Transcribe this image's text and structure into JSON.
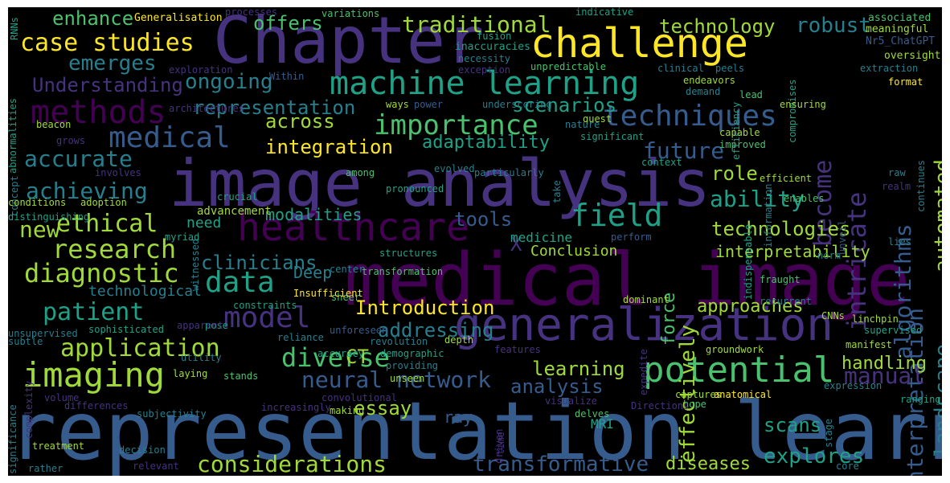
{
  "palette": {
    "yellow": "#fde725",
    "green_light": "#a0da39",
    "green": "#4ac16d",
    "teal": "#1fa187",
    "teal_dark": "#277f8e",
    "blue": "#365c8d",
    "indigo": "#46327e",
    "purple": "#440154",
    "background": "#000000"
  },
  "words": [
    "medical image",
    "representation learning",
    "image analysis",
    "Chapter",
    "generalization",
    "challenge",
    "machine learning",
    "healthcare",
    "potential",
    "imaging",
    "methods",
    "medical",
    "model",
    "field",
    "techniques",
    "importance",
    "data",
    "diagnostic",
    "research",
    "application",
    "considerations",
    "diverse",
    "neural network",
    "case studies",
    "traditional",
    "algorithms",
    "intricate",
    "become",
    "interpretation",
    "landscape",
    "automated",
    "ethical",
    "patient",
    "accurate",
    "achieving",
    "Introduction",
    "ability",
    "future",
    "manual",
    "integration",
    "emerges",
    "ongoing",
    "Understanding",
    "representation",
    "scenarios",
    "across",
    "adaptability",
    "technologies",
    "transformative",
    "explores",
    "diseases",
    "handling",
    "learning",
    "analysis",
    "essay",
    "scans",
    "approaches",
    "addressing",
    "tools",
    "clinicians",
    "robust",
    "technology",
    "enhance",
    "offers",
    "role",
    "effectively",
    "force",
    "interpretability",
    "new",
    "Deep",
    "CT",
    "X",
    "ray",
    "MRI",
    "modalities",
    "Conclusion",
    "medicine",
    "technological",
    "advancement",
    "need",
    "Generalisation",
    "processes",
    "variations",
    "indicative",
    "associated",
    "meaningful",
    "Nr5_ChatGPT",
    "fusion",
    "inaccuracies",
    "necessity",
    "exception",
    "unpredictable",
    "clinical",
    "peels",
    "oversight",
    "extraction",
    "exploration",
    "Within",
    "endeavors",
    "compromises",
    "format",
    "demand",
    "lead",
    "ensuring",
    "ways",
    "power",
    "underscoring",
    "abnormalities",
    "beacon",
    "grows",
    "architectures",
    "concept",
    "involves",
    "conditions",
    "adoption",
    "evolved",
    "pronounced",
    "particularly",
    "quest",
    "significant",
    "capable",
    "improved",
    "nature",
    "efficiency",
    "indispensable",
    "information",
    "context",
    "efficient",
    "among",
    "take",
    "raw",
    "realm",
    "enables",
    "unveil",
    "continues",
    "distinguishing",
    "crucial",
    "witnessed",
    "myriad",
    "transformation",
    "norm",
    "perform",
    "lies",
    "center",
    "structures",
    "sheer",
    "Insufficient",
    "constraints",
    "pose",
    "subtle",
    "sophisticated",
    "apparent",
    "dominant",
    "fraught",
    "recurrent",
    "CNNs",
    "linchpin",
    "supervised",
    "unsupervised",
    "complexity",
    "significance",
    "unforeseen",
    "reliance",
    "revolution",
    "depth",
    "demographic",
    "features",
    "expedite",
    "accuracy",
    "groundwork",
    "manifest",
    "expression",
    "providing",
    "unseen",
    "utility",
    "laying",
    "stands",
    "RNNs",
    "volume",
    "subjectivity",
    "convolutional",
    "increasingly",
    "making",
    "visualize",
    "hope",
    "captures",
    "anatomical",
    "ranging",
    "differences",
    "delves",
    "Directions",
    "driven",
    "time",
    "stage",
    "treatment",
    "decision",
    "intricacies",
    "core",
    "rather",
    "relevant"
  ]
}
